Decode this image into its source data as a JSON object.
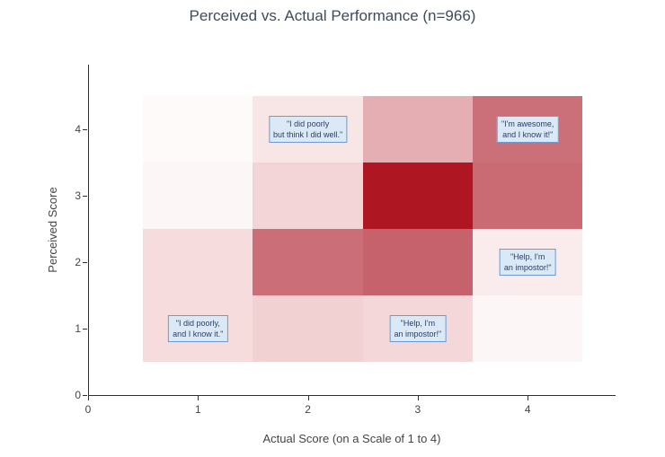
{
  "chart_data": {
    "type": "heatmap",
    "title": "Perceived vs. Actual Performance (n=966)",
    "xlabel": "Actual Score (on a Scale of 1 to 4)",
    "ylabel": "Perceived Score",
    "x": [
      1,
      2,
      3,
      4
    ],
    "y": [
      1,
      2,
      3,
      4
    ],
    "z_note": "relative cell intensity 0-1 estimated from color saturation; rows ordered y=1 (bottom) to y=4 (top), columns x=1 to x=4",
    "z": [
      [
        0.14,
        0.18,
        0.15,
        0.03
      ],
      [
        0.14,
        0.52,
        0.57,
        0.06
      ],
      [
        0.03,
        0.16,
        1.0,
        0.54
      ],
      [
        0.01,
        0.09,
        0.3,
        0.51
      ]
    ],
    "cell_colors": [
      [
        "#f6dcdd",
        "#f2d1d3",
        "#f4d7d8",
        "#fdf6f6"
      ],
      [
        "#f6dcdd",
        "#cb6e77",
        "#c5626c",
        "#faeced"
      ],
      [
        "#fdf6f6",
        "#f3d5d7",
        "#ae1622",
        "#ca6a73"
      ],
      [
        "#fefafa",
        "#f8e6e7",
        "#e4aeb3",
        "#cb7079"
      ]
    ],
    "xlim": [
      0,
      4.8
    ],
    "ylim": [
      0,
      4.97
    ],
    "x_ticks": [
      0,
      1,
      2,
      3,
      4
    ],
    "y_ticks": [
      0,
      1,
      2,
      3,
      4
    ],
    "grid": false,
    "legend": "none",
    "colorscale": {
      "low": "#ffffff",
      "high": "#a81020"
    },
    "annotations": [
      {
        "x": 2,
        "y": 4,
        "lines": [
          "\"I did poorly",
          "but think I did well.\""
        ]
      },
      {
        "x": 4,
        "y": 4,
        "lines": [
          "\"I'm awesome,",
          "and I know it!\""
        ]
      },
      {
        "x": 4,
        "y": 2,
        "lines": [
          "\"Help, I'm",
          "an impostor!\""
        ]
      },
      {
        "x": 1,
        "y": 1,
        "lines": [
          "\"I did poorly,",
          "and I know it.\""
        ]
      },
      {
        "x": 3,
        "y": 1,
        "lines": [
          "\"Help, I'm",
          "an impostor!\""
        ]
      }
    ]
  },
  "colors": {
    "annotation_bg": "#dbe9f6",
    "annotation_border": "#6b9bd2",
    "annotation_text": "#2a3f5f",
    "title_text": "#3d4c5c",
    "axis_text": "#444444",
    "axis_line": "#2f2f2f",
    "plot_bg": "#ffffff",
    "heat_low": "#fffdfd",
    "heat_high": "#a81020"
  }
}
